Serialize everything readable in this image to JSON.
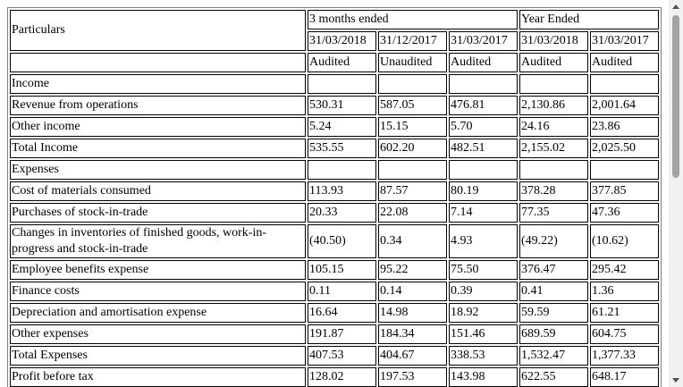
{
  "header": {
    "particulars": "Particulars",
    "three_months": "3 months ended",
    "year_ended": "Year Ended",
    "dates": [
      "31/03/2018",
      "31/12/2017",
      "31/03/2017",
      "31/03/2018",
      "31/03/2017"
    ],
    "audit": [
      "Audited",
      "Unaudited",
      "Audited",
      "Audited",
      "Audited"
    ]
  },
  "rows": [
    {
      "label": "Income"
    },
    {
      "label": "Revenue from operations",
      "values": [
        "530.31",
        "587.05",
        "476.81",
        "2,130.86",
        "2,001.64"
      ]
    },
    {
      "label": "Other income",
      "values": [
        "5.24",
        "15.15",
        "5.70",
        "24.16",
        "23.86"
      ]
    },
    {
      "label": "Total Income",
      "values": [
        "535.55",
        "602.20",
        "482.51",
        "2,155.02",
        "2,025.50"
      ]
    },
    {
      "label": "Expenses"
    },
    {
      "label": "Cost of materials consumed",
      "values": [
        "113.93",
        "87.57",
        "80.19",
        "378.28",
        "377.85"
      ]
    },
    {
      "label": "Purchases of stock-in-trade",
      "values": [
        "20.33",
        "22.08",
        "7.14",
        "77.35",
        "47.36"
      ]
    },
    {
      "label": "Changes in inventories of finished goods, work-in-progress and stock-in-trade",
      "values": [
        "(40.50)",
        "0.34",
        "4.93",
        "(49.22)",
        "(10.62)"
      ]
    },
    {
      "label": "Employee benefits expense",
      "values": [
        "105.15",
        "95.22",
        "75.50",
        "376.47",
        "295.42"
      ]
    },
    {
      "label": "Finance costs",
      "values": [
        "0.11",
        "0.14",
        "0.39",
        "0.41",
        "1.36"
      ]
    },
    {
      "label": "Depreciation and amortisation expense",
      "values": [
        "16.64",
        "14.98",
        "18.92",
        "59.59",
        "61.21"
      ]
    },
    {
      "label": "Other expenses",
      "values": [
        "191.87",
        "184.34",
        "151.46",
        "689.59",
        "604.75"
      ]
    },
    {
      "label": "Total Expenses",
      "values": [
        "407.53",
        "404.67",
        "338.53",
        "1,532.47",
        "1,377.33"
      ]
    },
    {
      "label": "Profit before tax",
      "values": [
        "128.02",
        "197.53",
        "143.98",
        "622.55",
        "648.17"
      ]
    }
  ]
}
